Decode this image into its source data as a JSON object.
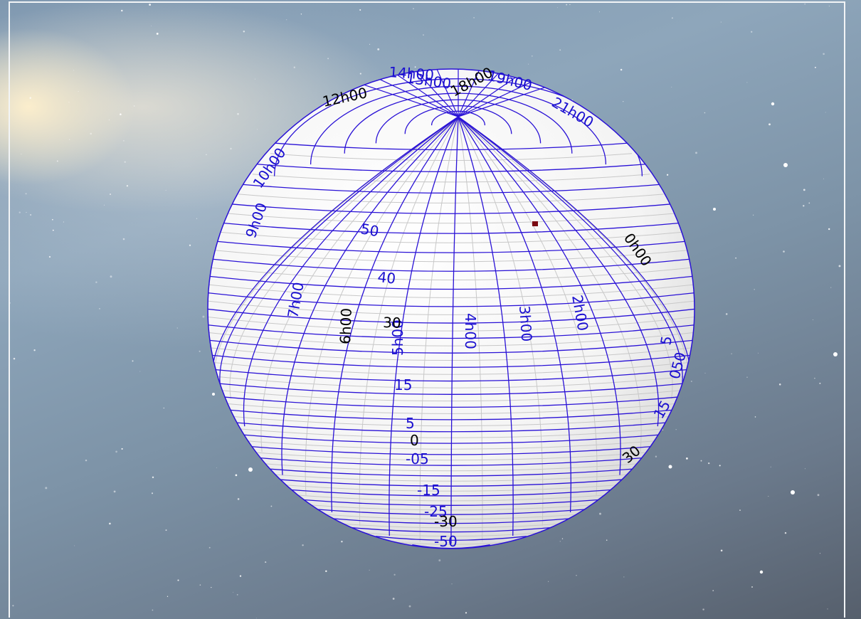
{
  "celestial_sphere": {
    "ra_labels": [
      {
        "text": "12h00",
        "color": "#000000"
      },
      {
        "text": "13h00",
        "color": "#1a0fd0"
      },
      {
        "text": "14h00",
        "color": "#1a0fd0"
      },
      {
        "text": "18h00",
        "color": "#000000"
      },
      {
        "text": "19h00",
        "color": "#1a0fd0"
      },
      {
        "text": "21h00",
        "color": "#1a0fd0"
      },
      {
        "text": "10h00",
        "color": "#1a0fd0"
      },
      {
        "text": "9h00",
        "color": "#1a0fd0"
      },
      {
        "text": "7h00",
        "color": "#1a0fd0"
      },
      {
        "text": "6h00",
        "color": "#000000"
      },
      {
        "text": "5h00",
        "color": "#1a0fd0"
      },
      {
        "text": "4h00",
        "color": "#1a0fd0"
      },
      {
        "text": "3h00",
        "color": "#1a0fd0"
      },
      {
        "text": "2h00",
        "color": "#1a0fd0"
      },
      {
        "text": "0h00",
        "color": "#000000"
      }
    ],
    "dec_labels": [
      {
        "text": "50",
        "color": "#1a0fd0"
      },
      {
        "text": "40",
        "color": "#1a0fd0"
      },
      {
        "text": "30",
        "color": "#000000"
      },
      {
        "text": "15",
        "color": "#1a0fd0"
      },
      {
        "text": "5",
        "color": "#1a0fd0"
      },
      {
        "text": "0",
        "color": "#000000"
      },
      {
        "text": "-05",
        "color": "#1a0fd0"
      },
      {
        "text": "-15",
        "color": "#1a0fd0"
      },
      {
        "text": "-25",
        "color": "#1a0fd0"
      },
      {
        "text": "-30",
        "color": "#000000"
      },
      {
        "text": "-50",
        "color": "#1a0fd0"
      },
      {
        "text": "30",
        "color": "#000000"
      },
      {
        "text": "15",
        "color": "#1a0fd0"
      },
      {
        "text": "050",
        "color": "#1a0fd0"
      },
      {
        "text": "5",
        "color": "#1a0fd0"
      }
    ],
    "colors": {
      "grid": "#2a12d6",
      "sphere": "#ffffff",
      "shade": "#c8c8c8",
      "marker": "#7a0a12"
    }
  }
}
